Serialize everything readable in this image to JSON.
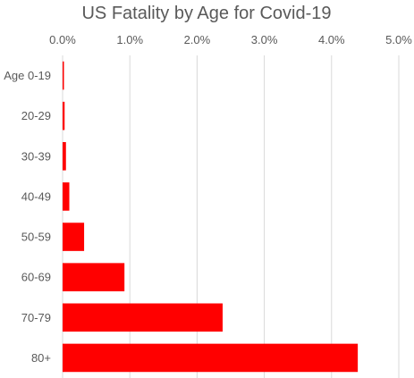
{
  "chart_data": {
    "type": "bar",
    "orientation": "horizontal",
    "title": "US Fatality by Age for Covid-19",
    "xlabel": "",
    "ylabel": "",
    "categories": [
      "Age 0-19",
      "20-29",
      "30-39",
      "40-49",
      "50-59",
      "60-69",
      "70-79",
      "80+"
    ],
    "values": [
      0.02,
      0.03,
      0.05,
      0.1,
      0.32,
      0.92,
      2.38,
      4.39
    ],
    "value_unit": "%",
    "xlim": [
      0,
      5
    ],
    "x_ticks": [
      "0.0%",
      "1.0%",
      "2.0%",
      "3.0%",
      "4.0%",
      "5.0%"
    ],
    "x_axis_position": "top",
    "grid": true,
    "legend": "none",
    "bar_color": "#ff0000"
  }
}
